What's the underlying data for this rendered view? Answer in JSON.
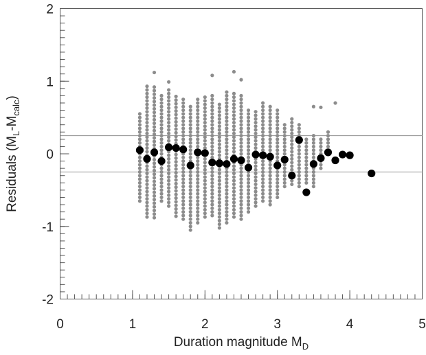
{
  "chart_data": {
    "type": "scatter",
    "title": "",
    "xlabel": {
      "main": "Duration magnitude M",
      "sub": "D"
    },
    "ylabel": {
      "parts": [
        {
          "text": "Residuals (M",
          "sub": false
        },
        {
          "text": "L",
          "sub": true
        },
        {
          "text": "-M",
          "sub": false
        },
        {
          "text": "calc",
          "sub": true
        },
        {
          "text": ")",
          "sub": false
        }
      ]
    },
    "xlim": [
      0,
      5
    ],
    "ylim": [
      -2,
      2
    ],
    "xticks": [
      0,
      1,
      2,
      3,
      4,
      5
    ],
    "yticks": [
      -2,
      -1,
      0,
      1,
      2
    ],
    "x_minor_step": 0.1,
    "y_minor_step": 0.1,
    "grid": false,
    "reference_lines_y": [
      0.25,
      -0.25
    ],
    "colors": {
      "individual": "#8c8c8c",
      "mean": "#000000",
      "reference": "#8c8c8c",
      "axis": "#555555"
    },
    "series": [
      {
        "style": "small-gray",
        "columns": [
          {
            "x": 1.1,
            "ymin": -0.65,
            "ymax": 0.55
          },
          {
            "x": 1.2,
            "ymin": -0.87,
            "ymax": 0.94
          },
          {
            "x": 1.3,
            "ymin": -0.88,
            "ymax": 1.12,
            "gap_above": 0.92
          },
          {
            "x": 1.4,
            "ymin": -0.65,
            "ymax": 0.8
          },
          {
            "x": 1.5,
            "ymin": -0.72,
            "ymax": 0.99,
            "gap_above": 0.9
          },
          {
            "x": 1.6,
            "ymin": -0.86,
            "ymax": 0.8
          },
          {
            "x": 1.7,
            "ymin": -0.9,
            "ymax": 0.78
          },
          {
            "x": 1.8,
            "ymin": -1.05,
            "ymax": 0.65
          },
          {
            "x": 1.9,
            "ymin": -0.95,
            "ymax": 0.75
          },
          {
            "x": 2.0,
            "ymin": -0.87,
            "ymax": 0.82
          },
          {
            "x": 2.1,
            "ymin": -0.85,
            "ymax": 1.08,
            "gap_above": 0.8
          },
          {
            "x": 2.2,
            "ymin": -1.02,
            "ymax": 0.7
          },
          {
            "x": 2.3,
            "ymin": -0.95,
            "ymax": 0.85
          },
          {
            "x": 2.4,
            "ymin": -0.87,
            "ymax": 1.13,
            "gap_above": 0.85
          },
          {
            "x": 2.5,
            "ymin": -0.9,
            "ymax": 1.02,
            "gap_above": 0.8
          },
          {
            "x": 2.6,
            "ymin": -0.8,
            "ymax": 0.62
          },
          {
            "x": 2.7,
            "ymin": -0.72,
            "ymax": 0.62
          },
          {
            "x": 2.8,
            "ymin": -0.65,
            "ymax": 0.72
          },
          {
            "x": 2.9,
            "ymin": -0.7,
            "ymax": 0.65
          },
          {
            "x": 3.0,
            "ymin": -0.6,
            "ymax": 0.62
          },
          {
            "x": 3.1,
            "ymin": -0.45,
            "ymax": 0.4
          },
          {
            "x": 3.2,
            "ymin": -0.42,
            "ymax": 0.52
          },
          {
            "x": 3.3,
            "ymin": -0.45,
            "ymax": 0.42
          },
          {
            "x": 3.4,
            "ymin": -0.4,
            "ymax": 0.2
          },
          {
            "x": 3.5,
            "ymin": -0.45,
            "ymax": 0.65,
            "gap_above": 0.28
          },
          {
            "x": 3.6,
            "ymin": -0.2,
            "ymax": 0.64,
            "gap_above": 0.2
          },
          {
            "x": 3.7,
            "ymin": 0.1,
            "ymax": 0.32
          },
          {
            "x": 3.8,
            "ymin": 0.7,
            "ymax": 0.7
          }
        ]
      },
      {
        "style": "large-black",
        "points": [
          [
            1.1,
            0.05
          ],
          [
            1.2,
            -0.07
          ],
          [
            1.3,
            0.02
          ],
          [
            1.4,
            -0.1
          ],
          [
            1.5,
            0.09
          ],
          [
            1.6,
            0.08
          ],
          [
            1.7,
            0.06
          ],
          [
            1.8,
            -0.16
          ],
          [
            1.9,
            0.02
          ],
          [
            2.0,
            0.01
          ],
          [
            2.1,
            -0.12
          ],
          [
            2.2,
            -0.13
          ],
          [
            2.3,
            -0.14
          ],
          [
            2.4,
            -0.07
          ],
          [
            2.5,
            -0.09
          ],
          [
            2.6,
            -0.19
          ],
          [
            2.7,
            -0.01
          ],
          [
            2.8,
            -0.02
          ],
          [
            2.9,
            -0.04
          ],
          [
            3.0,
            -0.16
          ],
          [
            3.1,
            -0.08
          ],
          [
            3.2,
            -0.3
          ],
          [
            3.3,
            0.19
          ],
          [
            3.4,
            -0.53
          ],
          [
            3.5,
            -0.14
          ],
          [
            3.6,
            -0.06
          ],
          [
            3.7,
            0.02
          ],
          [
            3.8,
            -0.09
          ],
          [
            3.9,
            -0.01
          ],
          [
            4.0,
            -0.02
          ],
          [
            4.3,
            -0.27
          ]
        ]
      }
    ]
  }
}
